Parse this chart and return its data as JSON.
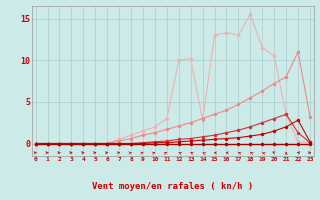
{
  "xlabel": "Vent moyen/en rafales ( kn/h )",
  "background_color": "#cceae8",
  "grid_color": "#aaccca",
  "x_values": [
    0,
    1,
    2,
    3,
    4,
    5,
    6,
    7,
    8,
    9,
    10,
    11,
    12,
    13,
    14,
    15,
    16,
    17,
    18,
    19,
    20,
    21,
    22,
    23
  ],
  "line_darkred_y": [
    0,
    0,
    0,
    0,
    0,
    0,
    0,
    0,
    0,
    0,
    0,
    0,
    0,
    0,
    0,
    0,
    0,
    0,
    0,
    0,
    0,
    0,
    0,
    0
  ],
  "line_red_y": [
    0,
    0,
    0,
    0,
    0,
    0,
    0,
    0,
    0,
    0,
    0.1,
    0.1,
    0.2,
    0.3,
    0.4,
    0.5,
    0.6,
    0.7,
    0.9,
    1.1,
    1.5,
    2.0,
    2.8,
    0.2
  ],
  "line_medred_y": [
    0,
    0,
    0,
    0,
    0,
    0,
    0,
    0,
    0,
    0.1,
    0.2,
    0.3,
    0.5,
    0.6,
    0.8,
    1.0,
    1.3,
    1.6,
    2.0,
    2.5,
    3.0,
    3.5,
    1.3,
    0.1
  ],
  "line_pink_y": [
    0,
    0,
    0,
    0,
    0,
    0,
    0,
    0.3,
    0.6,
    1.0,
    1.3,
    1.7,
    2.1,
    2.5,
    3.0,
    3.5,
    4.0,
    4.7,
    5.5,
    6.3,
    7.2,
    8.0,
    11.0,
    3.2
  ],
  "line_lightpink_y": [
    0,
    0,
    0,
    0,
    0,
    0,
    0,
    0.5,
    1.0,
    1.5,
    2.0,
    3.0,
    10.0,
    10.2,
    2.8,
    13.0,
    13.3,
    13.0,
    15.5,
    11.5,
    10.5,
    3.5,
    0.2,
    0.1
  ],
  "line_darkred_color": "#aa0000",
  "line_red_color": "#cc0000",
  "line_medred_color": "#cc3333",
  "line_pink_color": "#ee8888",
  "line_lightpink_color": "#f0b0b0",
  "yticks": [
    0,
    5,
    10,
    15
  ],
  "ylim": [
    -1.5,
    16.5
  ],
  "xlim": [
    -0.3,
    23.3
  ],
  "figsize": [
    3.2,
    2.0
  ],
  "dpi": 100
}
